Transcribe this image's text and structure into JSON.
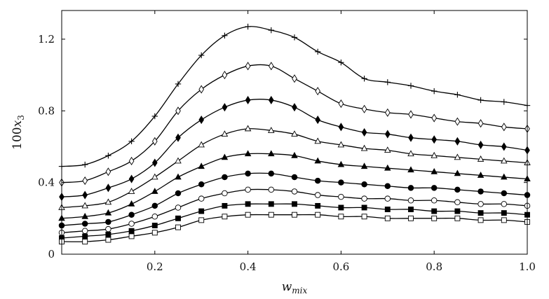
{
  "chart_data": {
    "type": "line",
    "title": "",
    "xlabel": "w",
    "xlabel_sub": "mix",
    "ylabel_prefix": "100",
    "ylabel_var": "x",
    "ylabel_sub": "3",
    "xlim": [
      0.0,
      1.0
    ],
    "ylim": [
      0.0,
      1.36
    ],
    "xticks": [
      0.2,
      0.4,
      0.6,
      0.8,
      1.0
    ],
    "xtick_labels": [
      "0.2",
      "0.4",
      "0.6",
      "0.8",
      "1.0"
    ],
    "yticks": [
      0.0,
      0.4,
      0.8,
      1.2
    ],
    "ytick_labels": [
      "0",
      "0.4",
      "0.8",
      "1.2"
    ],
    "grid": false,
    "x": [
      0.0,
      0.05,
      0.1,
      0.15,
      0.2,
      0.25,
      0.3,
      0.35,
      0.4,
      0.45,
      0.5,
      0.55,
      0.6,
      0.65,
      0.7,
      0.75,
      0.8,
      0.85,
      0.9,
      0.95,
      1.0
    ],
    "series": [
      {
        "marker": "plus",
        "values": [
          0.49,
          0.5,
          0.55,
          0.63,
          0.77,
          0.95,
          1.11,
          1.22,
          1.27,
          1.25,
          1.21,
          1.13,
          1.07,
          0.98,
          0.96,
          0.94,
          0.91,
          0.89,
          0.86,
          0.85,
          0.83
        ]
      },
      {
        "marker": "diamond-open",
        "values": [
          0.4,
          0.41,
          0.46,
          0.52,
          0.63,
          0.8,
          0.92,
          1.0,
          1.05,
          1.05,
          0.98,
          0.91,
          0.84,
          0.81,
          0.79,
          0.78,
          0.76,
          0.74,
          0.73,
          0.71,
          0.7
        ]
      },
      {
        "marker": "diamond-filled",
        "values": [
          0.32,
          0.33,
          0.37,
          0.42,
          0.51,
          0.65,
          0.75,
          0.82,
          0.86,
          0.86,
          0.82,
          0.75,
          0.71,
          0.68,
          0.67,
          0.65,
          0.64,
          0.63,
          0.61,
          0.6,
          0.58
        ]
      },
      {
        "marker": "triangle-open",
        "values": [
          0.26,
          0.27,
          0.29,
          0.35,
          0.43,
          0.52,
          0.61,
          0.67,
          0.7,
          0.69,
          0.67,
          0.63,
          0.61,
          0.59,
          0.58,
          0.56,
          0.55,
          0.54,
          0.53,
          0.52,
          0.51
        ]
      },
      {
        "marker": "triangle-filled",
        "values": [
          0.2,
          0.21,
          0.23,
          0.28,
          0.35,
          0.43,
          0.49,
          0.54,
          0.56,
          0.56,
          0.55,
          0.52,
          0.5,
          0.49,
          0.48,
          0.47,
          0.46,
          0.45,
          0.44,
          0.43,
          0.42
        ]
      },
      {
        "marker": "circle-filled",
        "values": [
          0.16,
          0.17,
          0.18,
          0.22,
          0.27,
          0.34,
          0.39,
          0.43,
          0.45,
          0.45,
          0.43,
          0.41,
          0.4,
          0.39,
          0.38,
          0.37,
          0.37,
          0.36,
          0.35,
          0.34,
          0.33
        ]
      },
      {
        "marker": "circle-open",
        "values": [
          0.12,
          0.13,
          0.14,
          0.17,
          0.21,
          0.26,
          0.31,
          0.34,
          0.36,
          0.36,
          0.35,
          0.33,
          0.32,
          0.31,
          0.31,
          0.3,
          0.3,
          0.29,
          0.28,
          0.28,
          0.27
        ]
      },
      {
        "marker": "square-filled",
        "values": [
          0.09,
          0.1,
          0.11,
          0.13,
          0.16,
          0.2,
          0.24,
          0.27,
          0.28,
          0.28,
          0.28,
          0.27,
          0.26,
          0.26,
          0.25,
          0.25,
          0.24,
          0.24,
          0.23,
          0.23,
          0.22
        ]
      },
      {
        "marker": "square-open",
        "values": [
          0.07,
          0.07,
          0.08,
          0.1,
          0.12,
          0.15,
          0.19,
          0.21,
          0.22,
          0.22,
          0.22,
          0.22,
          0.21,
          0.21,
          0.2,
          0.2,
          0.2,
          0.2,
          0.19,
          0.19,
          0.18
        ]
      }
    ]
  }
}
